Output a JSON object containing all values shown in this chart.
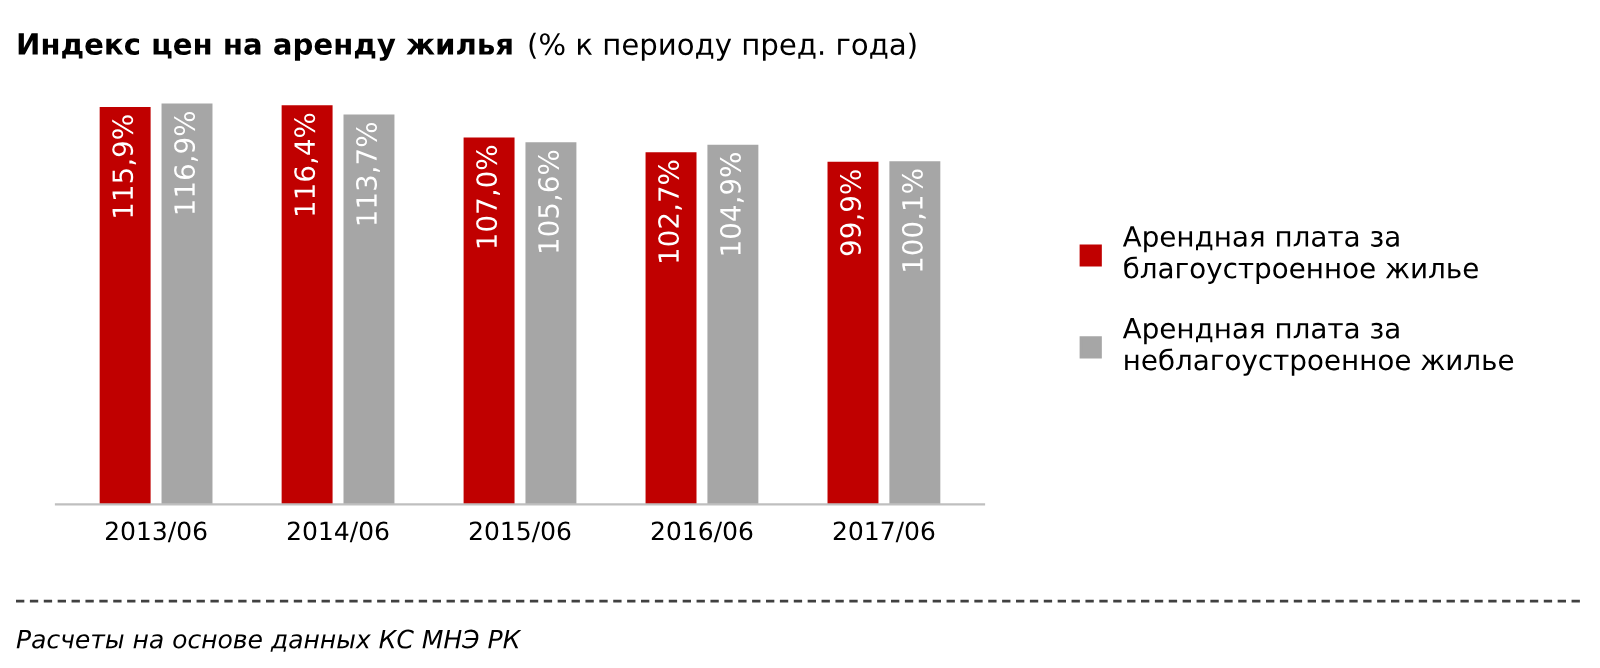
{
  "chart_data": {
    "type": "bar",
    "title": "Индекс цен на аренду жилья",
    "subtitle": "(% к периоду пред. года)",
    "categories": [
      "2013/06",
      "2014/06",
      "2015/06",
      "2016/06",
      "2017/06"
    ],
    "series": [
      {
        "name": "Арендная плата за\nблагоустроенное жилье",
        "color": "#c00000",
        "values": [
          115.9,
          116.4,
          107.0,
          102.7,
          99.9
        ],
        "value_labels": [
          "115,9%",
          "116,4%",
          "107,0%",
          "102,7%",
          "99,9%"
        ]
      },
      {
        "name": "Арендная плата за\nнеблагоустроенное жилье",
        "color": "#a6a6a6",
        "values": [
          116.9,
          113.7,
          105.6,
          104.9,
          100.1
        ],
        "value_labels": [
          "116,9%",
          "113,7%",
          "105,6%",
          "104,9%",
          "100,1%"
        ]
      }
    ],
    "tick_labels": "x",
    "legend": "right",
    "grid": false,
    "annotations": [
      "Расчеты на основе данных КС МНЭ РК"
    ]
  }
}
